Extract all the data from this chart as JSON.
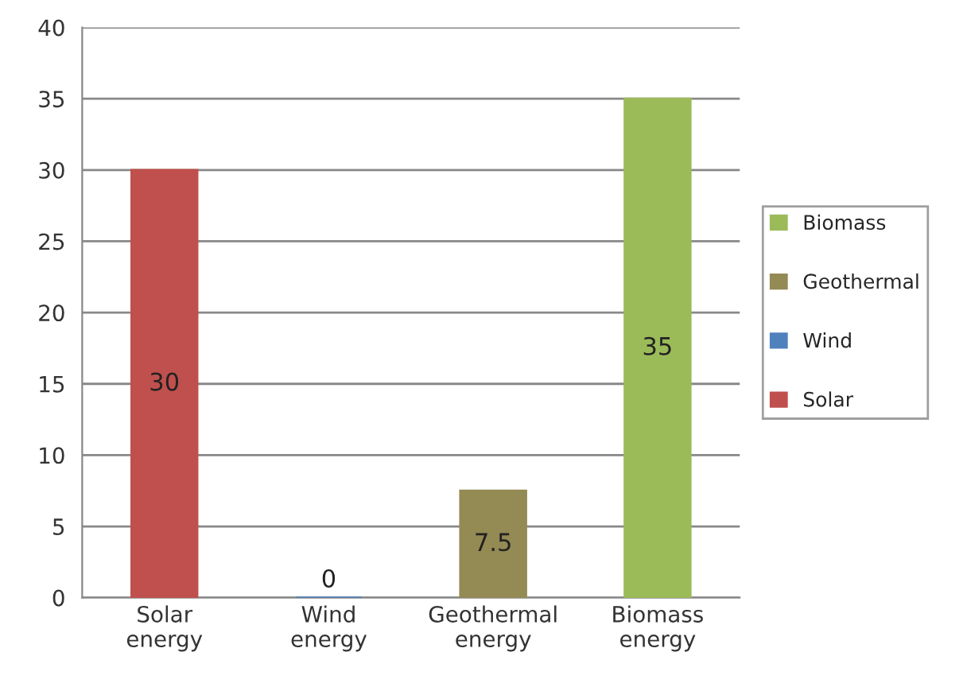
{
  "chart_data": {
    "type": "bar",
    "stacked": true,
    "categories": [
      "Solar\nenergy",
      "Wind\nenergy",
      "Geothermal\nenergy",
      "Biomass\nenergy"
    ],
    "series": [
      {
        "name": "Solar",
        "color": "#c0504d",
        "values": [
          30,
          null,
          null,
          null
        ]
      },
      {
        "name": "Wind",
        "color": "#4f81bd",
        "values": [
          null,
          0,
          null,
          null
        ]
      },
      {
        "name": "Geothermal",
        "color": "#948a54",
        "values": [
          null,
          null,
          7.5,
          null
        ]
      },
      {
        "name": "Biomass",
        "color": "#9bbb59",
        "values": [
          null,
          null,
          null,
          35
        ]
      }
    ],
    "ylim": [
      0,
      40
    ],
    "yticks": [
      0,
      5,
      10,
      15,
      20,
      25,
      30,
      35,
      40
    ],
    "grid": "y",
    "legend": "right",
    "data_labels": true
  }
}
